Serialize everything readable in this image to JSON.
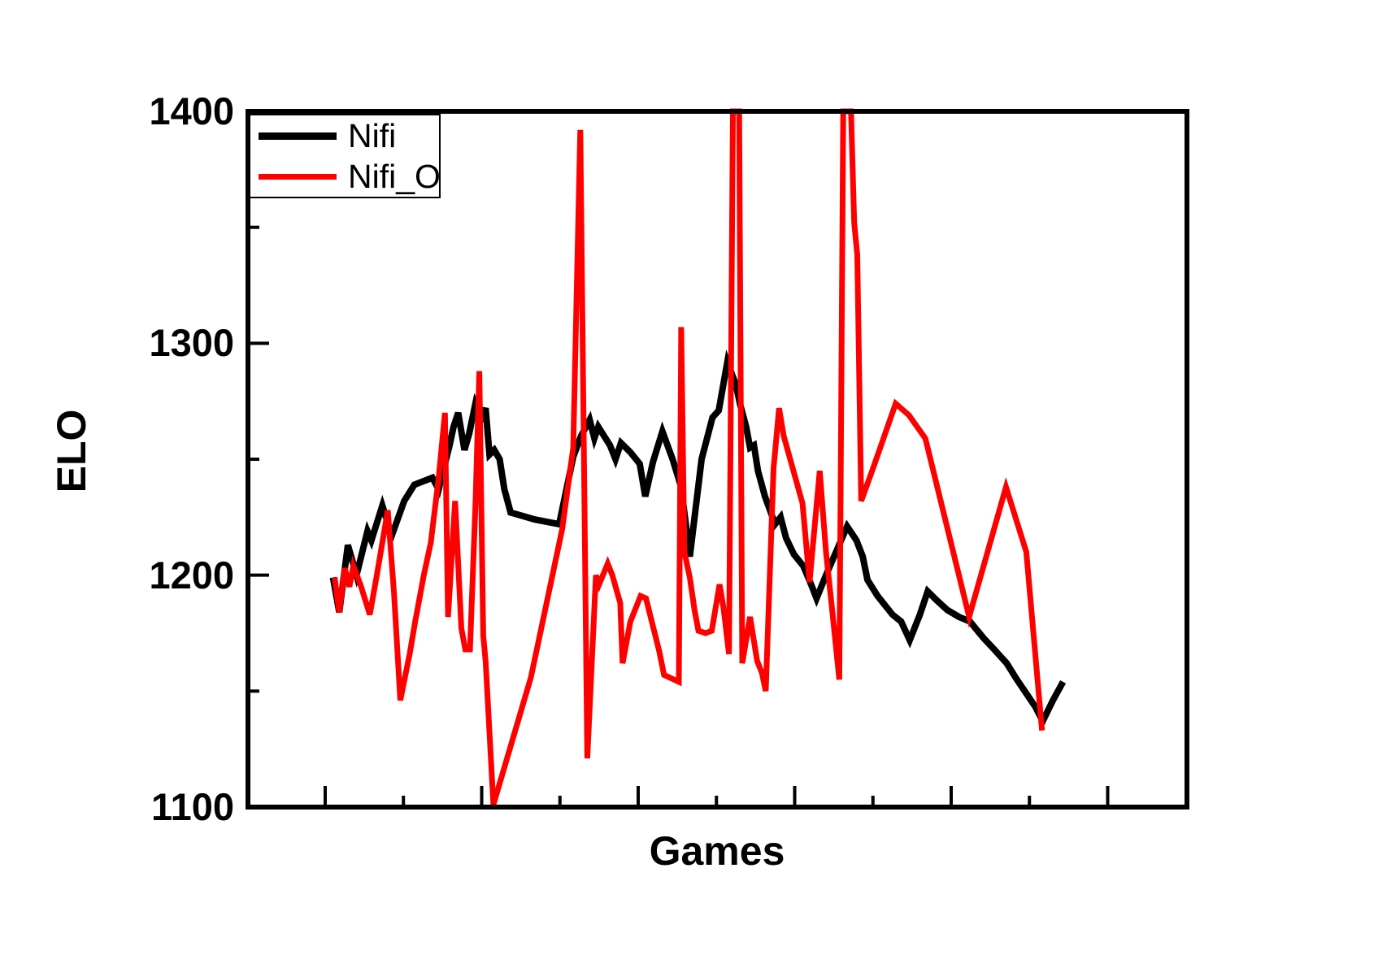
{
  "figure": {
    "background": "#ffffff"
  },
  "legend": {
    "items": [
      {
        "label": "Nifi",
        "color": "#000000",
        "sample_thickness": 9
      },
      {
        "label": "Nifi_O",
        "color": "#ff0000",
        "sample_thickness": 7
      }
    ]
  },
  "chart_data": {
    "type": "line",
    "title": "",
    "xlabel": "Games",
    "ylabel": "ELO",
    "x_unit": "game index (x axis shows unlabeled ticks only)",
    "ylim": [
      1100,
      1400
    ],
    "xlim_games": [
      -10,
      110
    ],
    "grid": false,
    "legend_position": "top-left",
    "y_major_ticks": [
      1400,
      1300,
      1200,
      1100
    ],
    "y_minor_ticks": [
      1350,
      1250,
      1150
    ],
    "x_major_ticks_games": [
      0,
      20,
      40,
      60,
      80,
      100
    ],
    "x_minor_ticks_games": [
      10,
      30,
      50,
      70,
      90
    ],
    "frame_color": "#000000",
    "clip_note": "spikes reaching 1400 are clipped flat at the top frame",
    "series": [
      {
        "name": "Nifi",
        "color": "#000000",
        "width": 8,
        "points": [
          [
            1.0,
            1199
          ],
          [
            1.8,
            1184
          ],
          [
            2.9,
            1213
          ],
          [
            4.0,
            1200
          ],
          [
            5.4,
            1219
          ],
          [
            5.9,
            1215
          ],
          [
            7.3,
            1230
          ],
          [
            8.5,
            1217
          ],
          [
            10.1,
            1232
          ],
          [
            11.4,
            1239
          ],
          [
            13.7,
            1242
          ],
          [
            14.5,
            1237
          ],
          [
            15.3,
            1248
          ],
          [
            15.9,
            1256
          ],
          [
            16.4,
            1264
          ],
          [
            17.0,
            1270
          ],
          [
            17.8,
            1254
          ],
          [
            18.4,
            1261
          ],
          [
            19.2,
            1274
          ],
          [
            20.0,
            1268
          ],
          [
            20.5,
            1272
          ],
          [
            21.0,
            1252
          ],
          [
            21.6,
            1254
          ],
          [
            22.3,
            1250
          ],
          [
            22.9,
            1237
          ],
          [
            23.7,
            1227
          ],
          [
            26.8,
            1224
          ],
          [
            29.9,
            1222
          ],
          [
            31.7,
            1251
          ],
          [
            32.7,
            1260
          ],
          [
            33.8,
            1267
          ],
          [
            34.4,
            1259
          ],
          [
            34.9,
            1264
          ],
          [
            36.4,
            1256
          ],
          [
            37.1,
            1250
          ],
          [
            37.8,
            1257
          ],
          [
            39.0,
            1253
          ],
          [
            40.2,
            1248
          ],
          [
            40.9,
            1234
          ],
          [
            41.9,
            1249
          ],
          [
            43.1,
            1262
          ],
          [
            44.4,
            1250
          ],
          [
            45.5,
            1238
          ],
          [
            46.6,
            1208
          ],
          [
            48.1,
            1250
          ],
          [
            49.5,
            1268
          ],
          [
            50.3,
            1271
          ],
          [
            51.4,
            1292
          ],
          [
            52.5,
            1282
          ],
          [
            53.0,
            1274
          ],
          [
            53.8,
            1264
          ],
          [
            54.3,
            1255
          ],
          [
            54.8,
            1256
          ],
          [
            55.3,
            1245
          ],
          [
            56.2,
            1234
          ],
          [
            57.5,
            1222
          ],
          [
            58.2,
            1225
          ],
          [
            58.9,
            1216
          ],
          [
            59.9,
            1209
          ],
          [
            61.1,
            1204
          ],
          [
            62.1,
            1196
          ],
          [
            62.8,
            1190
          ],
          [
            64.0,
            1200
          ],
          [
            66.7,
            1221
          ],
          [
            67.9,
            1215
          ],
          [
            68.7,
            1208
          ],
          [
            69.3,
            1198
          ],
          [
            70.6,
            1191
          ],
          [
            72.5,
            1183
          ],
          [
            73.6,
            1180
          ],
          [
            74.7,
            1172
          ],
          [
            76.0,
            1183
          ],
          [
            77.0,
            1193
          ],
          [
            78.2,
            1189
          ],
          [
            79.5,
            1185
          ],
          [
            81.0,
            1182
          ],
          [
            82.4,
            1180
          ],
          [
            84.1,
            1173
          ],
          [
            85.5,
            1168
          ],
          [
            87.1,
            1162
          ],
          [
            88.4,
            1155
          ],
          [
            89.8,
            1148
          ],
          [
            90.8,
            1143
          ],
          [
            91.7,
            1137
          ],
          [
            93.0,
            1146
          ],
          [
            94.3,
            1154
          ]
        ]
      },
      {
        "name": "Nifi_O",
        "color": "#ff0000",
        "width": 7,
        "points": [
          [
            1.2,
            1199
          ],
          [
            1.8,
            1184
          ],
          [
            2.5,
            1203
          ],
          [
            3.1,
            1195
          ],
          [
            3.6,
            1204
          ],
          [
            4.5,
            1196
          ],
          [
            5.7,
            1183
          ],
          [
            6.6,
            1200
          ],
          [
            7.3,
            1214
          ],
          [
            8.0,
            1228
          ],
          [
            8.8,
            1192
          ],
          [
            9.6,
            1146
          ],
          [
            10.8,
            1166
          ],
          [
            11.5,
            1180
          ],
          [
            12.6,
            1200
          ],
          [
            13.5,
            1214
          ],
          [
            14.5,
            1242
          ],
          [
            15.3,
            1270
          ],
          [
            15.7,
            1182
          ],
          [
            16.6,
            1232
          ],
          [
            17.4,
            1177
          ],
          [
            17.9,
            1168
          ],
          [
            18.5,
            1168
          ],
          [
            19.2,
            1230
          ],
          [
            19.7,
            1288
          ],
          [
            20.2,
            1174
          ],
          [
            20.5,
            1163
          ],
          [
            21.5,
            1101
          ],
          [
            26.3,
            1156
          ],
          [
            30.3,
            1220
          ],
          [
            31.7,
            1255
          ],
          [
            32.6,
            1392
          ],
          [
            33.5,
            1121
          ],
          [
            34.6,
            1200
          ],
          [
            35.0,
            1196
          ],
          [
            36.1,
            1205
          ],
          [
            36.7,
            1200
          ],
          [
            37.7,
            1188
          ],
          [
            38.0,
            1162
          ],
          [
            39.0,
            1180
          ],
          [
            40.3,
            1191
          ],
          [
            41.0,
            1190
          ],
          [
            42.7,
            1167
          ],
          [
            43.3,
            1157
          ],
          [
            45.2,
            1154
          ],
          [
            45.5,
            1307
          ],
          [
            45.9,
            1210
          ],
          [
            46.6,
            1199
          ],
          [
            47.2,
            1185
          ],
          [
            47.7,
            1176
          ],
          [
            48.6,
            1175
          ],
          [
            49.4,
            1176
          ],
          [
            50.4,
            1196
          ],
          [
            50.9,
            1186
          ],
          [
            51.6,
            1166
          ],
          [
            52.1,
            1400
          ],
          [
            52.9,
            1400
          ],
          [
            53.3,
            1162
          ],
          [
            54.3,
            1182
          ],
          [
            55.2,
            1163
          ],
          [
            55.8,
            1158
          ],
          [
            56.3,
            1150
          ],
          [
            57.3,
            1246
          ],
          [
            58.0,
            1272
          ],
          [
            58.6,
            1260
          ],
          [
            61.0,
            1231
          ],
          [
            61.9,
            1197
          ],
          [
            63.2,
            1245
          ],
          [
            64.0,
            1210
          ],
          [
            64.7,
            1188
          ],
          [
            65.7,
            1155
          ],
          [
            66.2,
            1400
          ],
          [
            67.2,
            1400
          ],
          [
            67.6,
            1352
          ],
          [
            68.0,
            1338
          ],
          [
            68.5,
            1232
          ],
          [
            70.0,
            1246
          ],
          [
            72.9,
            1274
          ],
          [
            74.6,
            1269
          ],
          [
            76.7,
            1259
          ],
          [
            82.3,
            1182
          ],
          [
            87.0,
            1238
          ],
          [
            89.6,
            1210
          ],
          [
            91.6,
            1133
          ]
        ]
      }
    ]
  }
}
